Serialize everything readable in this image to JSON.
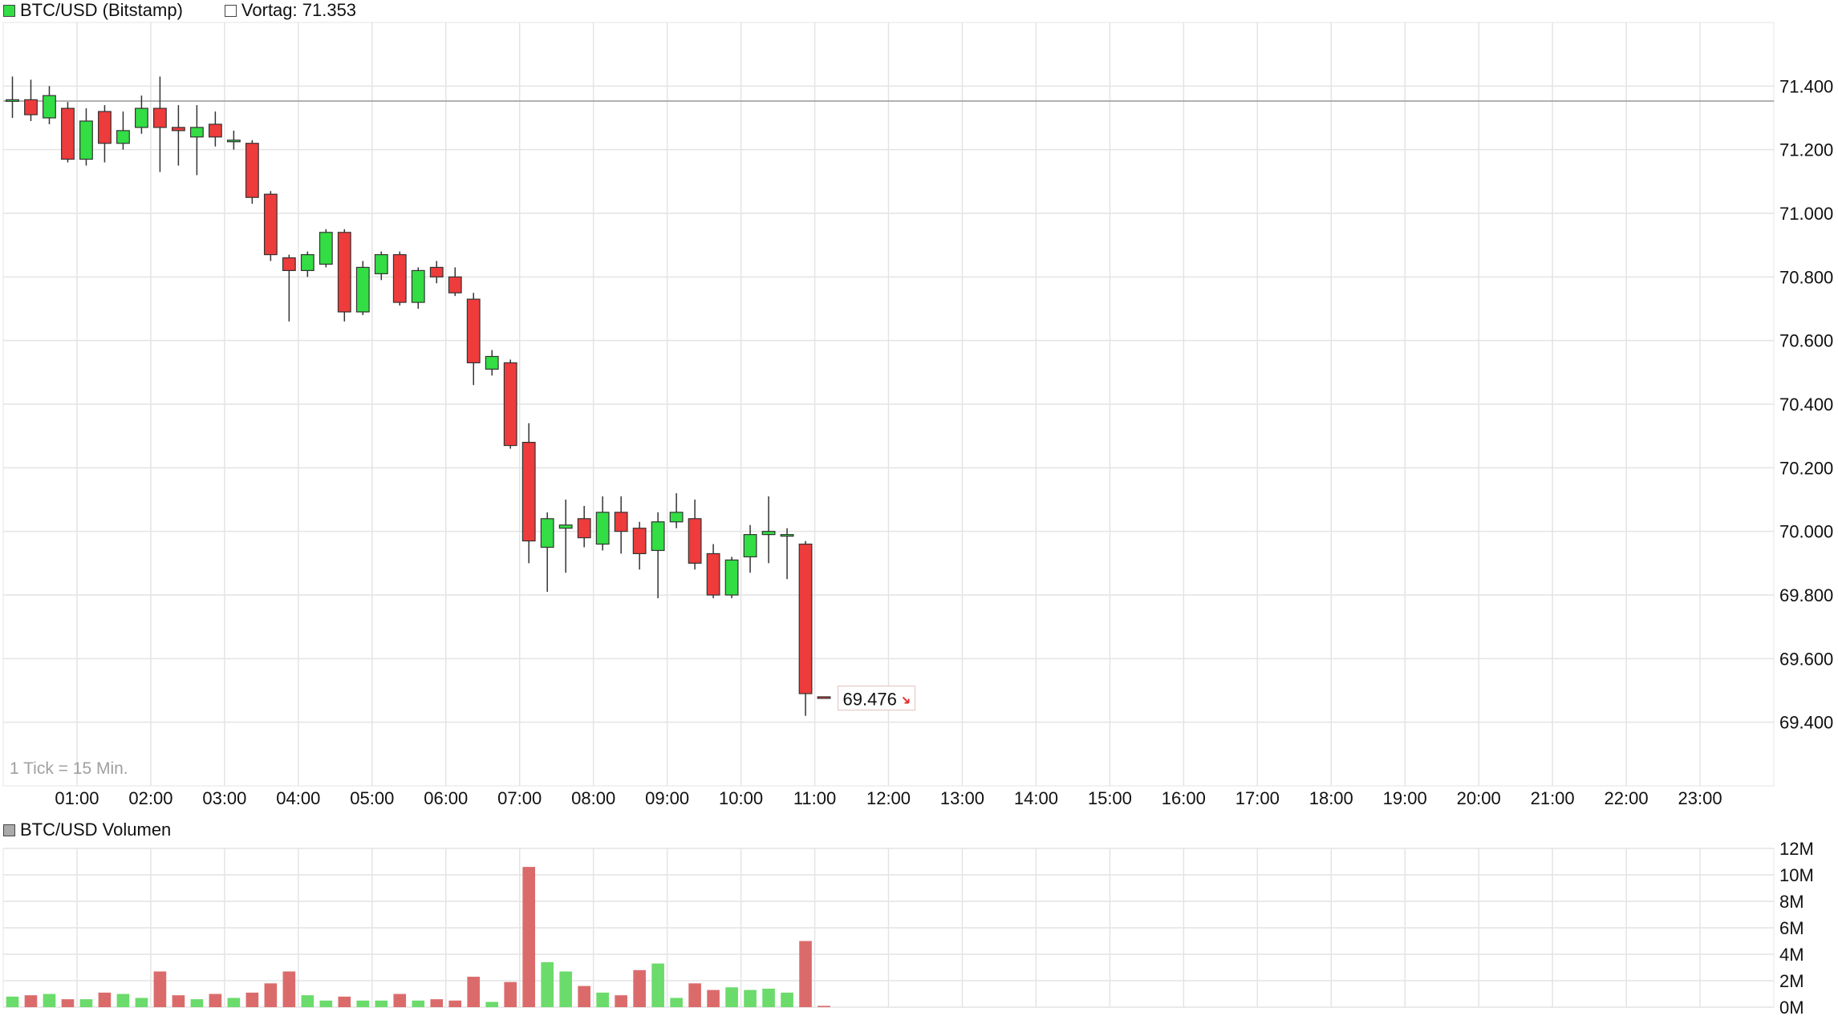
{
  "legend": {
    "series_label": "BTC/USD (Bitstamp)",
    "prev_label": "Vortag: 71.353",
    "volume_label": "BTC/USD Volumen",
    "series_color": "#33dd44",
    "volume_swatch_color": "#aaaaaa"
  },
  "colors": {
    "up": "#33dd44",
    "down": "#ee3b3b",
    "vol_up": "#6bdb6b",
    "vol_down": "#db6b6b",
    "grid": "#e4e4e4",
    "prev_line": "#999999",
    "arrow": "#e03030"
  },
  "chart_data": [
    {
      "type": "candlestick",
      "tick_note": "1 Tick = 15 Min.",
      "previous_close": 71.353,
      "last_value_label": "69.476",
      "ylim": [
        69.2,
        71.6
      ],
      "yticks": [
        "71.400",
        "71.200",
        "71.000",
        "70.800",
        "70.600",
        "70.400",
        "70.200",
        "70.000",
        "69.800",
        "69.600",
        "69.400"
      ],
      "yticks_values": [
        71.4,
        71.2,
        71.0,
        70.8,
        70.6,
        70.4,
        70.2,
        70.0,
        69.8,
        69.6,
        69.4
      ],
      "xlim_hours": [
        0,
        24
      ],
      "xticks": [
        "01:00",
        "02:00",
        "03:00",
        "04:00",
        "05:00",
        "06:00",
        "07:00",
        "08:00",
        "09:00",
        "10:00",
        "11:00",
        "12:00",
        "13:00",
        "14:00",
        "15:00",
        "16:00",
        "17:00",
        "18:00",
        "19:00",
        "20:00",
        "21:00",
        "22:00",
        "23:00"
      ],
      "candles": [
        [
          71.353,
          71.357,
          71.43,
          71.3
        ],
        [
          71.357,
          71.31,
          71.42,
          71.29
        ],
        [
          71.3,
          71.37,
          71.4,
          71.28
        ],
        [
          71.33,
          71.17,
          71.35,
          71.16
        ],
        [
          71.17,
          71.29,
          71.33,
          71.15
        ],
        [
          71.32,
          71.22,
          71.34,
          71.16
        ],
        [
          71.22,
          71.26,
          71.32,
          71.2
        ],
        [
          71.27,
          71.33,
          71.37,
          71.25
        ],
        [
          71.33,
          71.27,
          71.43,
          71.13
        ],
        [
          71.27,
          71.26,
          71.34,
          71.15
        ],
        [
          71.24,
          71.27,
          71.34,
          71.12
        ],
        [
          71.28,
          71.24,
          71.32,
          71.21
        ],
        [
          71.23,
          71.23,
          71.26,
          71.2
        ],
        [
          71.22,
          71.05,
          71.23,
          71.03
        ],
        [
          71.06,
          70.87,
          71.07,
          70.85
        ],
        [
          70.86,
          70.82,
          70.87,
          70.66
        ],
        [
          70.82,
          70.87,
          70.88,
          70.8
        ],
        [
          70.84,
          70.94,
          70.95,
          70.83
        ],
        [
          70.94,
          70.69,
          70.95,
          70.66
        ],
        [
          70.69,
          70.83,
          70.85,
          70.68
        ],
        [
          70.81,
          70.87,
          70.88,
          70.79
        ],
        [
          70.87,
          70.72,
          70.88,
          70.71
        ],
        [
          70.72,
          70.82,
          70.83,
          70.7
        ],
        [
          70.83,
          70.8,
          70.85,
          70.78
        ],
        [
          70.8,
          70.75,
          70.83,
          70.74
        ],
        [
          70.73,
          70.53,
          70.75,
          70.46
        ],
        [
          70.51,
          70.55,
          70.57,
          70.49
        ],
        [
          70.53,
          70.27,
          70.54,
          70.26
        ],
        [
          70.28,
          69.97,
          70.34,
          69.9
        ],
        [
          69.95,
          70.04,
          70.06,
          69.81
        ],
        [
          70.01,
          70.02,
          70.1,
          69.87
        ],
        [
          70.04,
          69.98,
          70.08,
          69.95
        ],
        [
          69.96,
          70.06,
          70.11,
          69.94
        ],
        [
          70.06,
          70.0,
          70.11,
          69.93
        ],
        [
          70.01,
          69.93,
          70.03,
          69.88
        ],
        [
          69.94,
          70.03,
          70.06,
          69.79
        ],
        [
          70.03,
          70.06,
          70.12,
          70.01
        ],
        [
          70.04,
          69.9,
          70.1,
          69.88
        ],
        [
          69.93,
          69.8,
          69.96,
          69.79
        ],
        [
          69.8,
          69.91,
          69.92,
          69.79
        ],
        [
          69.92,
          69.99,
          70.02,
          69.87
        ],
        [
          69.99,
          70.0,
          70.11,
          69.9
        ],
        [
          69.99,
          69.99,
          70.01,
          69.85
        ],
        [
          69.96,
          69.49,
          69.97,
          69.42
        ],
        [
          69.48,
          69.476,
          69.48,
          69.476
        ]
      ]
    },
    {
      "type": "bar",
      "title": "BTC/USD Volumen",
      "ylim": [
        0,
        12
      ],
      "yticks": [
        "12M",
        "10M",
        "8M",
        "6M",
        "4M",
        "2M",
        "0M"
      ],
      "yticks_values": [
        12,
        10,
        8,
        6,
        4,
        2,
        0
      ],
      "values": [
        0.8,
        0.9,
        1.0,
        0.6,
        0.6,
        1.1,
        1.0,
        0.7,
        2.7,
        0.9,
        0.6,
        1.0,
        0.7,
        1.1,
        1.8,
        2.7,
        0.9,
        0.5,
        0.8,
        0.5,
        0.5,
        1.0,
        0.5,
        0.6,
        0.5,
        2.3,
        0.4,
        1.9,
        10.6,
        3.4,
        2.7,
        1.6,
        1.1,
        0.9,
        2.8,
        3.3,
        0.7,
        1.8,
        1.3,
        1.5,
        1.3,
        1.4,
        1.1,
        5.0,
        0.1
      ]
    }
  ]
}
